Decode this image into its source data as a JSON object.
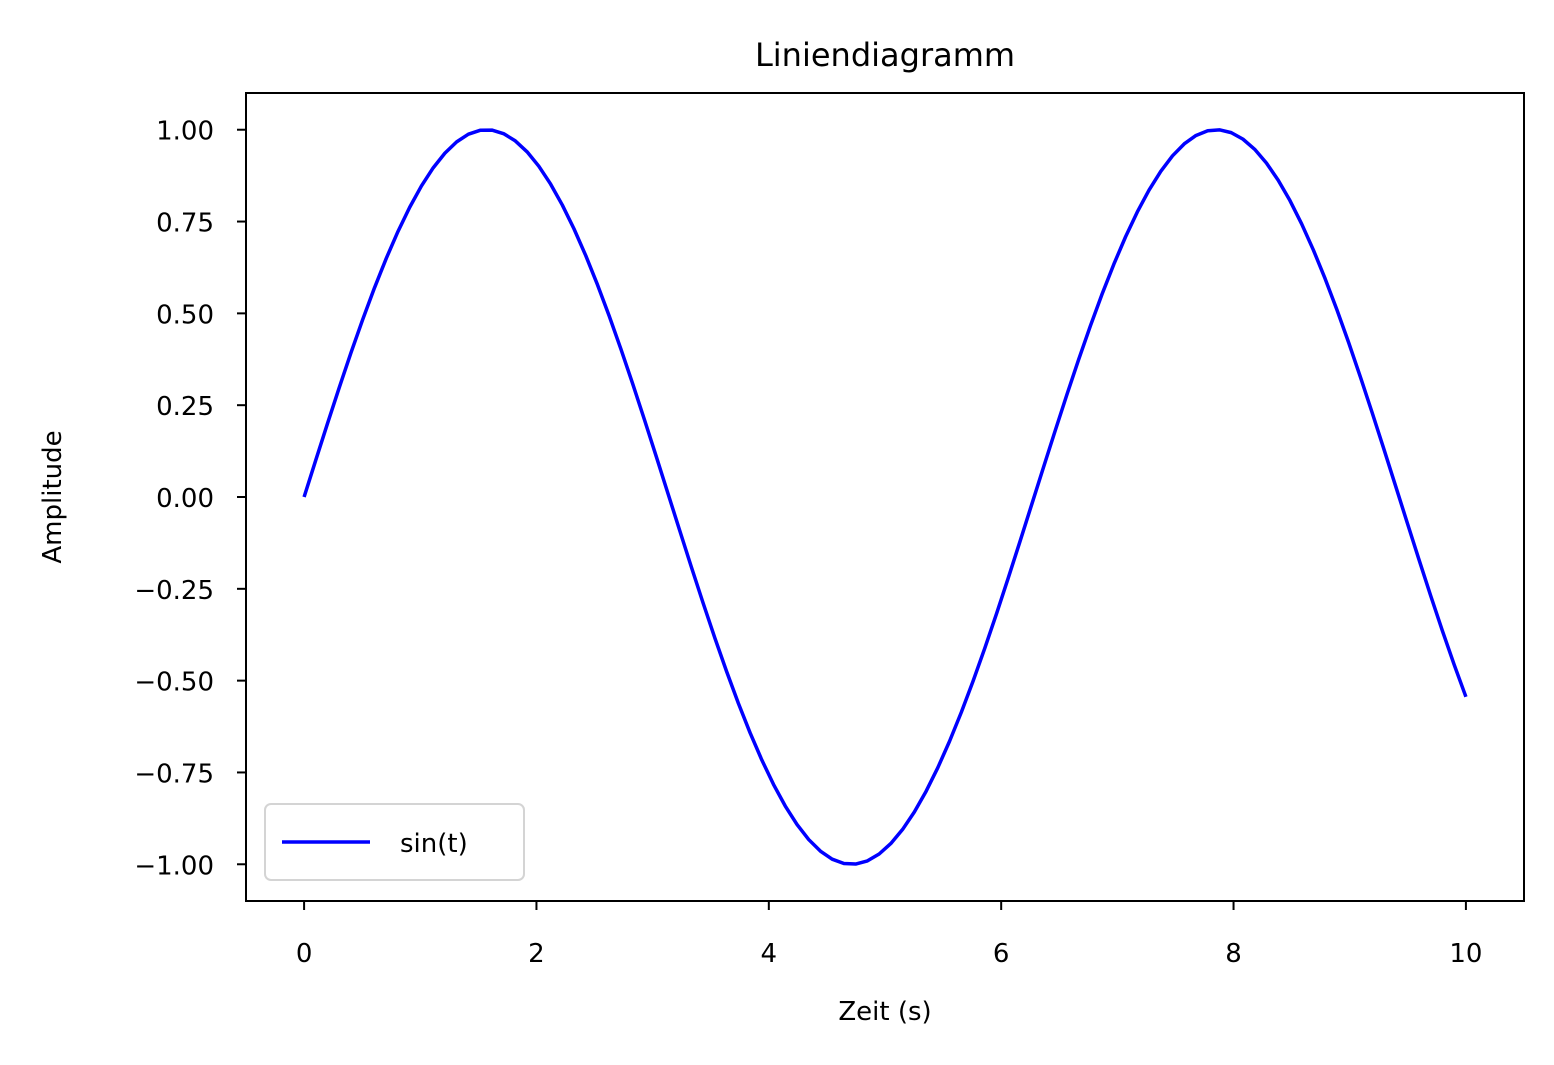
{
  "chart_data": {
    "type": "line",
    "title": "Liniendiagramm",
    "xlabel": "Zeit (s)",
    "ylabel": "Amplitude",
    "xlim": [
      -0.5,
      10.5
    ],
    "ylim": [
      -1.1,
      1.1
    ],
    "xticks": [
      0,
      2,
      4,
      6,
      8,
      10
    ],
    "xtick_labels": [
      "0",
      "2",
      "4",
      "6",
      "8",
      "10"
    ],
    "yticks": [
      1.0,
      0.75,
      0.5,
      0.25,
      0.0,
      -0.25,
      -0.5,
      -0.75,
      -1.0
    ],
    "ytick_labels": [
      "1.00",
      "0.75",
      "0.50",
      "0.25",
      "0.00",
      "−0.25",
      "−0.50",
      "−0.75",
      "−1.00"
    ],
    "grid": false,
    "legend_position": "lower-left",
    "series": [
      {
        "name": "sin(t)",
        "color": "#0000ff",
        "function": "sin",
        "x_start": 0,
        "x_end": 10,
        "samples": 100
      }
    ]
  }
}
